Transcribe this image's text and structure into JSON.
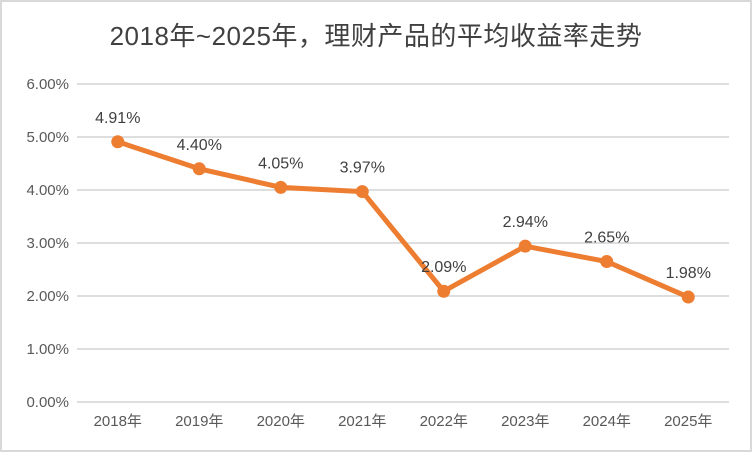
{
  "chart_data": {
    "type": "line",
    "title": "2018年~2025年，理财产品的平均收益率走势",
    "categories": [
      "2018年",
      "2019年",
      "2020年",
      "2021年",
      "2022年",
      "2023年",
      "2024年",
      "2025年"
    ],
    "values": [
      4.91,
      4.4,
      4.05,
      3.97,
      2.09,
      2.94,
      2.65,
      1.98
    ],
    "data_labels": [
      "4.91%",
      "4.40%",
      "4.05%",
      "3.97%",
      "2.09%",
      "2.94%",
      "2.65%",
      "1.98%"
    ],
    "y_ticks": [
      "0.00%",
      "1.00%",
      "2.00%",
      "3.00%",
      "4.00%",
      "5.00%",
      "6.00%"
    ],
    "ylim": [
      0,
      6
    ],
    "grid": true,
    "legend": "none",
    "xlabel": "",
    "ylabel": "",
    "line_color": "#ED7D31",
    "marker_color": "#ED7D31",
    "gridline_color": "#D9D9D9",
    "tick_label_color": "#595959",
    "data_label_color": "#404040",
    "title_color": "#404040",
    "background_color": "#FFFFFF",
    "frame_border_color": "#D9D9D9"
  }
}
